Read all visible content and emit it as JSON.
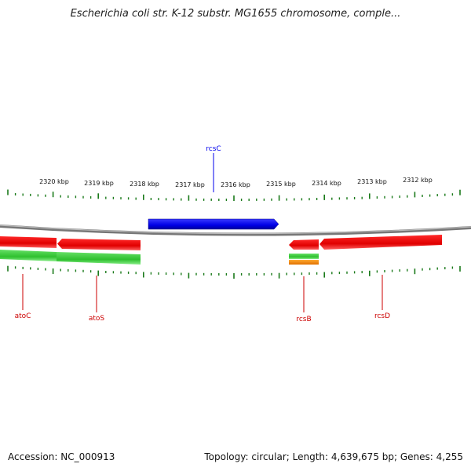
{
  "title": "Escherichia coli str. K-12 substr. MG1655 chromosome, comple...",
  "ticks": [
    "2320 kbp",
    "2319 kbp",
    "2318 kbp",
    "2317 kbp",
    "2316 kbp",
    "2315 kbp",
    "2314 kbp",
    "2313 kbp",
    "2312 kbp"
  ],
  "genes": [
    {
      "name": "rcsC",
      "color": "#0000ee"
    },
    {
      "name": "atoC",
      "color": "#cc0000"
    },
    {
      "name": "atoS",
      "color": "#cc0000"
    },
    {
      "name": "rcsB",
      "color": "#cc0000"
    },
    {
      "name": "rcsD",
      "color": "#cc0000"
    }
  ],
  "colors": {
    "backbone": "#8a8a8a",
    "forward_gene": "#0000ee",
    "reverse_gene": "#ee0000",
    "cds_feature": "#33cc33",
    "misc_feature": "#ff8800",
    "ticks": "#1a7a1a"
  },
  "footer": {
    "accession": "Accession: NC_000913",
    "summary": "Topology: circular; Length: 4,639,675 bp; Genes: 4,255"
  }
}
